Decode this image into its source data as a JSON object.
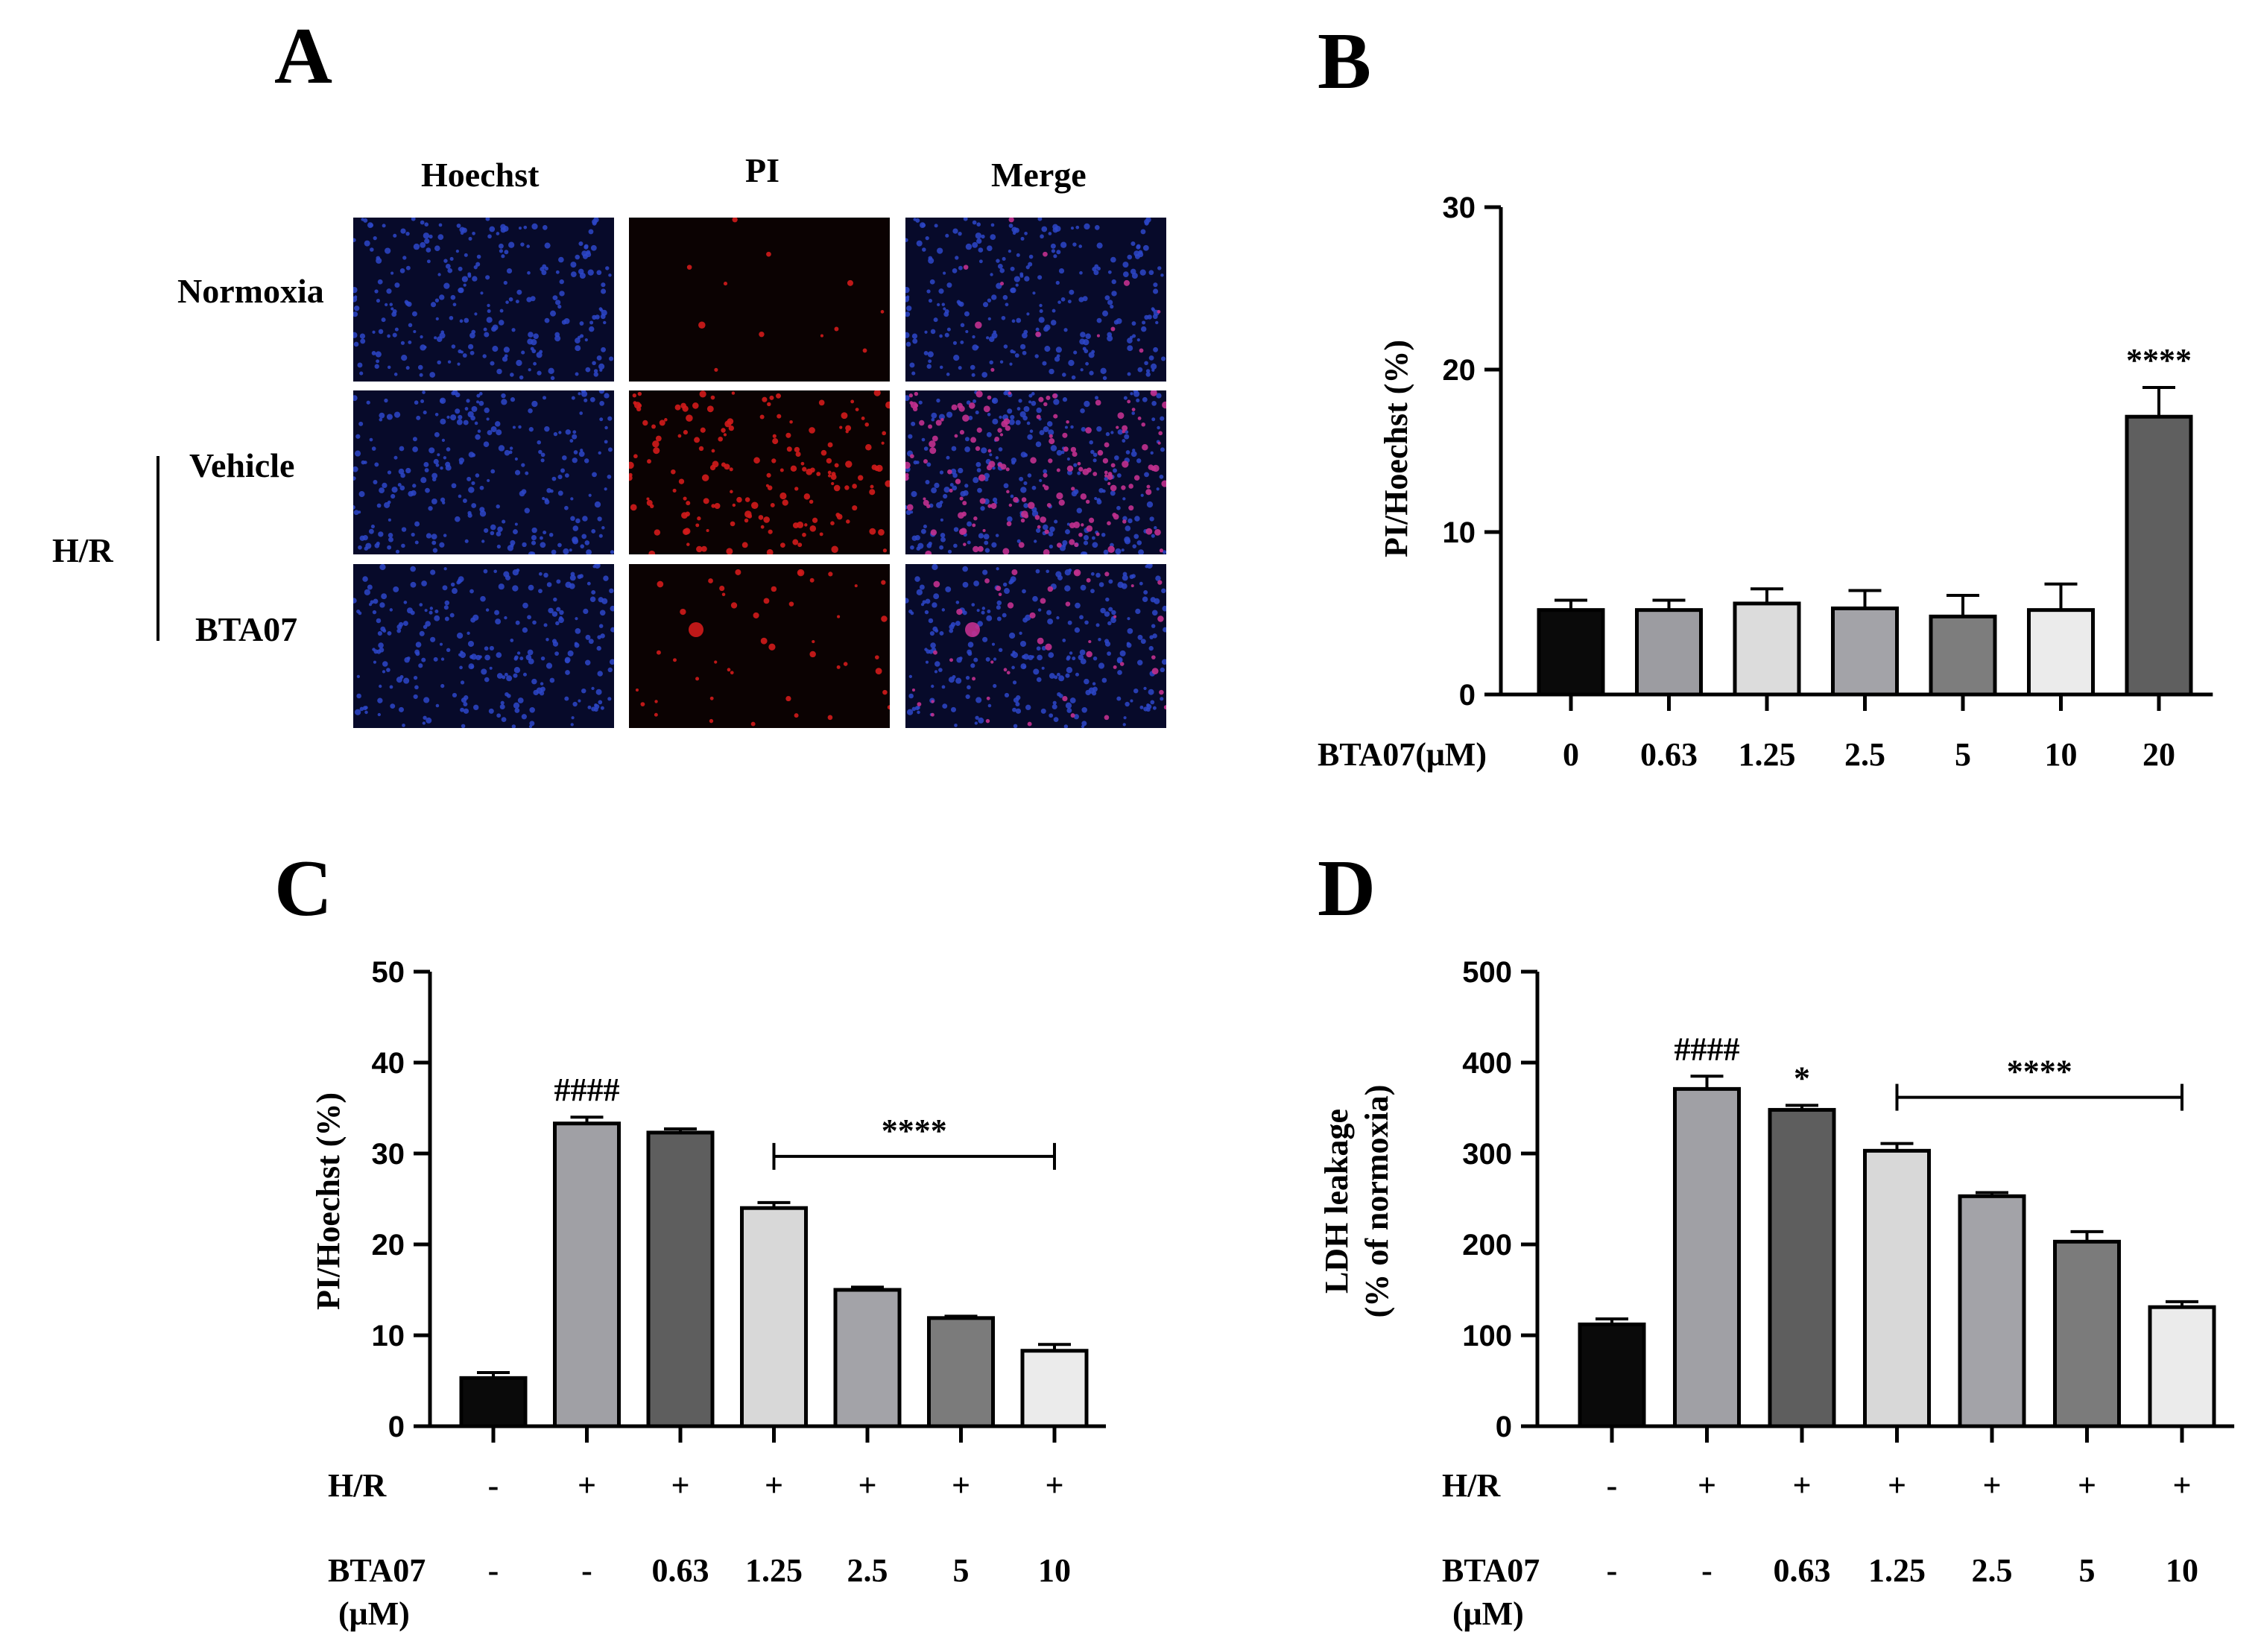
{
  "panel_a": {
    "letter": "A",
    "columns": [
      "Hoechst",
      "PI",
      "Merge"
    ],
    "rows": [
      "Normoxia",
      "Vehicle",
      "BTA07"
    ],
    "group_label": "H/R"
  },
  "chart_data": [
    {
      "id": "B",
      "type": "bar",
      "title": "B",
      "ylabel": "PI/Hoechst (%)",
      "xlabel": "BTA07(μM)",
      "categories": [
        "0",
        "0.63",
        "1.25",
        "2.5",
        "5",
        "10",
        "20"
      ],
      "values": [
        5.2,
        5.2,
        5.6,
        5.3,
        4.8,
        5.2,
        17.1
      ],
      "errors": [
        0.6,
        0.6,
        0.9,
        1.1,
        1.3,
        1.6,
        1.8
      ],
      "colors": [
        "#0a0a0a",
        "#9c9ca1",
        "#dcdcdc",
        "#a3a3a8",
        "#7d7d7d",
        "#ebebeb",
        "#5f5f5f"
      ],
      "ylim": [
        0,
        30
      ],
      "yticks": [
        0,
        10,
        20,
        30
      ],
      "annotations": [
        {
          "bar": 6,
          "text": "****"
        }
      ]
    },
    {
      "id": "C",
      "type": "bar",
      "title": "C",
      "ylabel": "PI/Hoechst (%)",
      "row_labels": [
        "H/R",
        "BTA07",
        "(μM)"
      ],
      "categories": [
        "-",
        "+",
        "+",
        "+",
        "+",
        "+",
        "+"
      ],
      "bta07": [
        "-",
        "-",
        "0.63",
        "1.25",
        "2.5",
        "5",
        "10"
      ],
      "values": [
        5.3,
        33.3,
        32.3,
        24.0,
        15.0,
        11.9,
        8.3
      ],
      "errors": [
        0.6,
        0.7,
        0.4,
        0.6,
        0.3,
        0.2,
        0.7
      ],
      "colors": [
        "#0a0a0a",
        "#a0a0a5",
        "#5e5e5e",
        "#d8d8d8",
        "#a3a3a8",
        "#7b7b7b",
        "#ebebeb"
      ],
      "ylim": [
        0,
        50
      ],
      "yticks": [
        0,
        10,
        20,
        30,
        40,
        50
      ],
      "annotations": [
        {
          "bar": 1,
          "text": "####"
        }
      ],
      "bracket": {
        "from": 3,
        "to": 6,
        "text": "****"
      }
    },
    {
      "id": "D",
      "type": "bar",
      "title": "D",
      "ylabel": "LDH leakage",
      "ylabel2": "(% of normoxia)",
      "row_labels": [
        "H/R",
        "BTA07",
        "(μM)"
      ],
      "categories": [
        "-",
        "+",
        "+",
        "+",
        "+",
        "+",
        "+"
      ],
      "bta07": [
        "-",
        "-",
        "0.63",
        "1.25",
        "2.5",
        "5",
        "10"
      ],
      "values": [
        112,
        371,
        348,
        303,
        253,
        203,
        131
      ],
      "errors": [
        6,
        14,
        5,
        8,
        4,
        11,
        6
      ],
      "colors": [
        "#0a0a0a",
        "#a0a0a5",
        "#5e5e5e",
        "#d8d8d8",
        "#a3a3a8",
        "#7b7b7b",
        "#ebebeb"
      ],
      "ylim": [
        0,
        500
      ],
      "yticks": [
        0,
        100,
        200,
        300,
        400,
        500
      ],
      "annotations": [
        {
          "bar": 1,
          "text": "####"
        },
        {
          "bar": 2,
          "text": "*"
        }
      ],
      "bracket": {
        "from": 3,
        "to": 6,
        "text": "****"
      }
    }
  ]
}
